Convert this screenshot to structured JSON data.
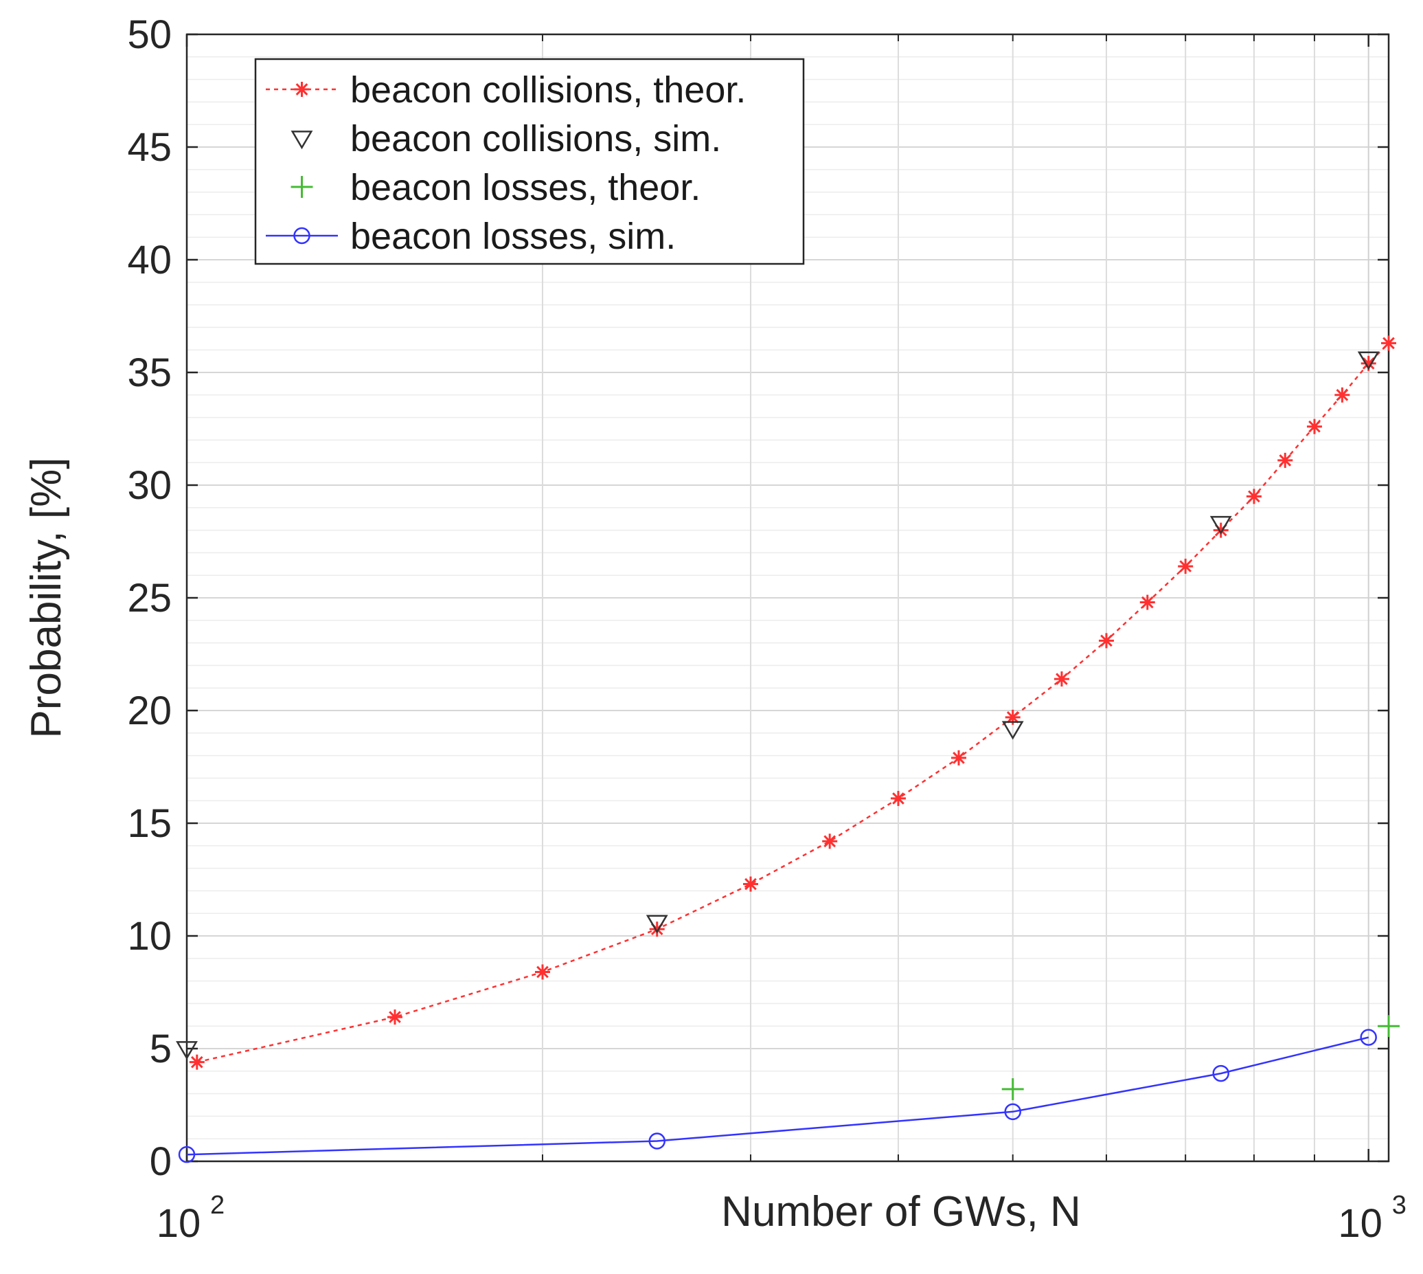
{
  "chart_data": {
    "type": "line",
    "title": "",
    "xlabel": "Number of GWs, N",
    "ylabel": "Probability, [%]",
    "xscale": "log",
    "xlim": [
      100,
      1040
    ],
    "ylim": [
      0,
      50
    ],
    "yticks": [
      0,
      5,
      10,
      15,
      20,
      25,
      30,
      35,
      40,
      45,
      50
    ],
    "xticks": [
      {
        "value": 100,
        "base": "10",
        "exp": "2"
      },
      {
        "value": 1000,
        "base": "10",
        "exp": "3"
      }
    ],
    "grid": "on",
    "legend_placement": "top-left",
    "series": [
      {
        "name": "beacon collisions, theor.",
        "color": "#ff3030",
        "line": "dotted",
        "marker": "asterisk",
        "x": [
          102,
          150,
          200,
          250,
          300,
          350,
          400,
          450,
          500,
          550,
          600,
          650,
          700,
          750,
          800,
          850,
          900,
          950,
          1000,
          1040
        ],
        "y": [
          4.4,
          6.4,
          8.4,
          10.3,
          12.3,
          14.2,
          16.1,
          17.9,
          19.7,
          21.4,
          23.1,
          24.8,
          26.4,
          28.0,
          29.5,
          31.1,
          32.6,
          34.0,
          35.4,
          36.3
        ]
      },
      {
        "name": "beacon collisions, sim.",
        "color": "#333333",
        "line": "none",
        "marker": "triangle-down",
        "x": [
          100,
          250,
          500,
          750,
          1000
        ],
        "y": [
          5.0,
          10.6,
          19.2,
          28.3,
          35.6
        ]
      },
      {
        "name": "beacon losses, theor.",
        "color": "#44bb33",
        "line": "none",
        "marker": "plus",
        "x": [
          500,
          1040
        ],
        "y": [
          3.2,
          6.0
        ]
      },
      {
        "name": "beacon losses, sim.",
        "color": "#3333ff",
        "line": "solid",
        "marker": "circle",
        "x": [
          100,
          250,
          500,
          750,
          1000
        ],
        "y": [
          0.3,
          0.9,
          2.2,
          3.9,
          5.5
        ]
      }
    ]
  }
}
